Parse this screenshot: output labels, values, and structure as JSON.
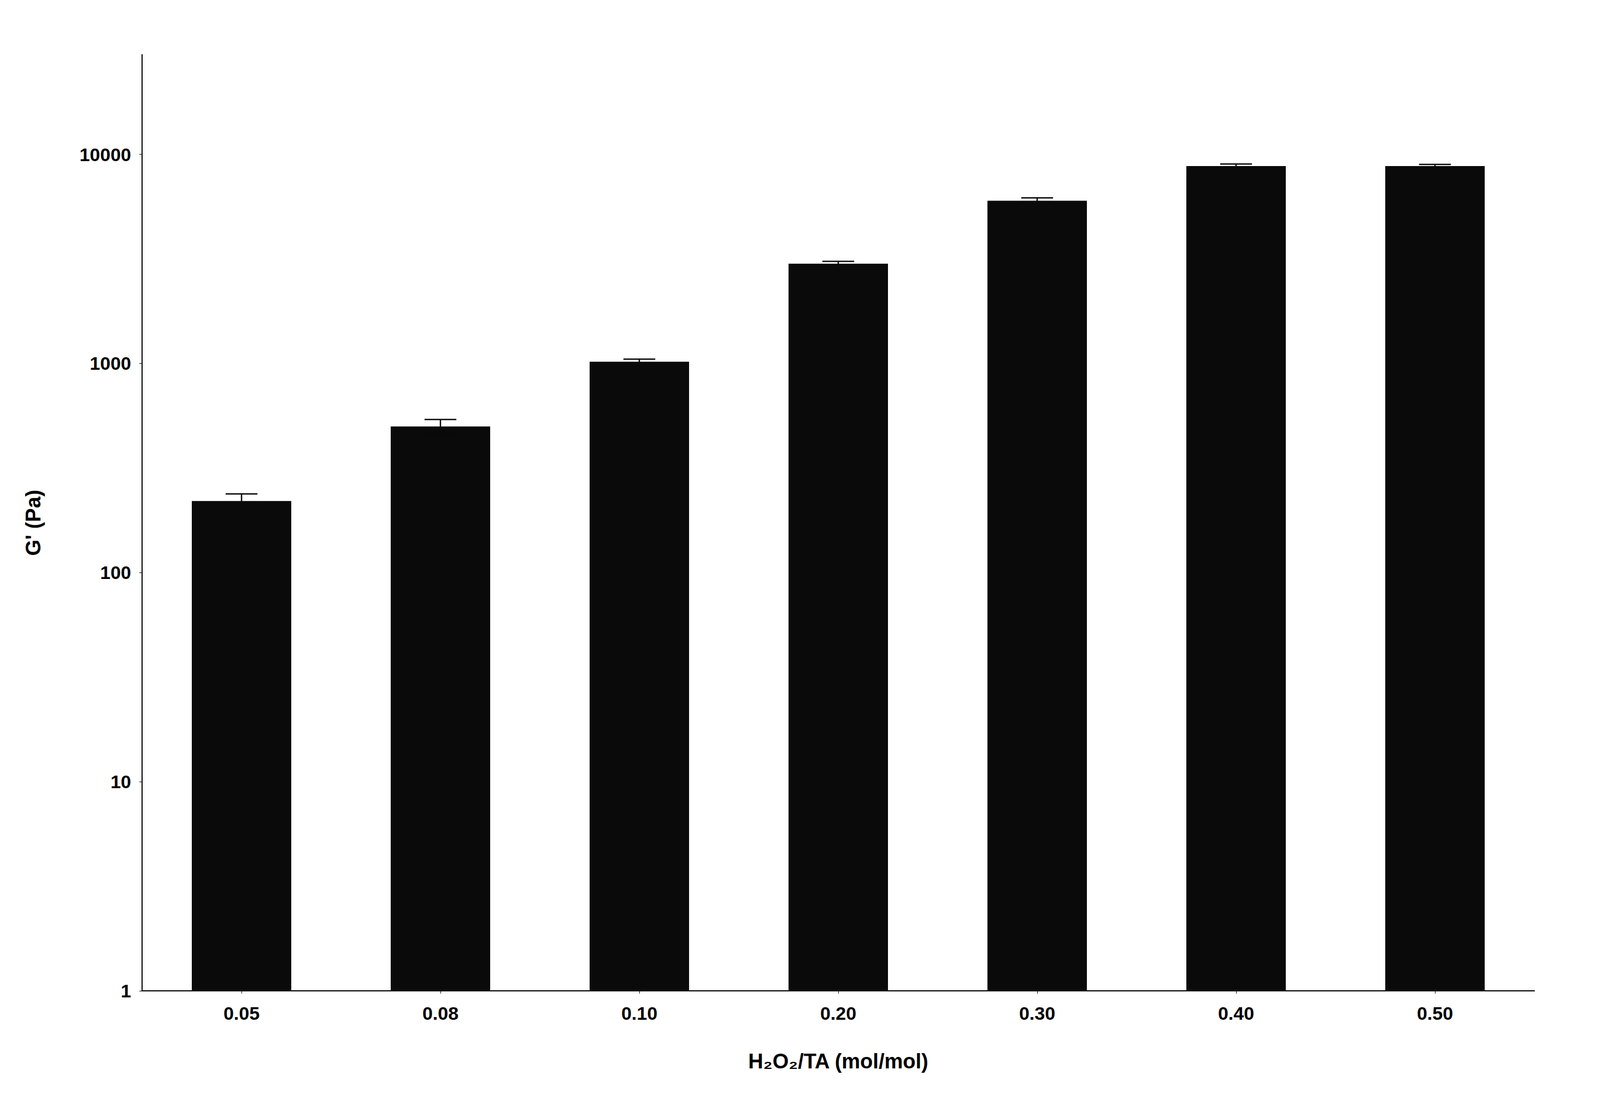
{
  "chart_data": {
    "type": "bar",
    "categories": [
      "0.05",
      "0.08",
      "0.10",
      "0.20",
      "0.30",
      "0.40",
      "0.50"
    ],
    "values": [
      220,
      500,
      1020,
      3000,
      6000,
      8800,
      8800
    ],
    "errors": [
      18,
      40,
      30,
      80,
      200,
      200,
      150
    ],
    "color": "#0a0a0a",
    "xlabel": "H₂O₂/TA (mol/mol)",
    "ylabel": "G' (Pa)",
    "ylim": [
      1,
      30000
    ],
    "yticks": [
      1,
      10,
      100,
      1000,
      10000
    ],
    "log": "y",
    "grid": false
  }
}
